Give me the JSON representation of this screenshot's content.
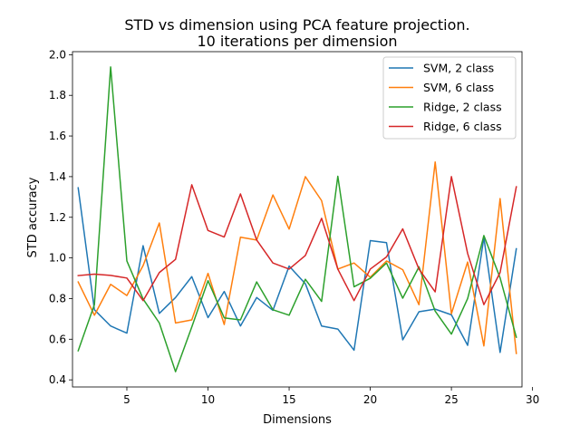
{
  "chart_data": {
    "type": "line",
    "title": [
      "STD vs dimension using PCA feature projection.",
      "10 iterations per dimension"
    ],
    "xlabel": "Dimensions",
    "ylabel": "STD accuracy",
    "xlim": [
      1.65,
      29.35
    ],
    "ylim": [
      0.365,
      2.015
    ],
    "xticks": [
      5,
      10,
      15,
      20,
      25,
      30
    ],
    "yticks": [
      0.4,
      0.6,
      0.8,
      1.0,
      1.2,
      1.4,
      1.6,
      1.8,
      2.0
    ],
    "xtick_labels": [
      "5",
      "10",
      "15",
      "20",
      "25",
      "30"
    ],
    "ytick_labels": [
      "0.4",
      "0.6",
      "0.8",
      "1.0",
      "1.2",
      "1.4",
      "1.6",
      "1.8",
      "2.0"
    ],
    "grid": false,
    "legend_position": "top-right",
    "x": [
      2,
      3,
      4,
      5,
      6,
      7,
      8,
      9,
      10,
      11,
      12,
      13,
      14,
      15,
      16,
      17,
      18,
      19,
      20,
      21,
      22,
      23,
      24,
      25,
      26,
      27,
      28,
      29
    ],
    "series": [
      {
        "name": "SVM, 2 class",
        "color": "#1f77b4",
        "values": [
          1.345,
          0.745,
          0.665,
          0.63,
          1.06,
          0.727,
          0.805,
          0.908,
          0.706,
          0.835,
          0.665,
          0.805,
          0.742,
          0.96,
          0.873,
          0.665,
          0.65,
          0.546,
          1.085,
          1.075,
          0.597,
          0.735,
          0.748,
          0.72,
          0.57,
          1.1,
          0.535,
          1.045
        ]
      },
      {
        "name": "SVM, 6 class",
        "color": "#ff7f0e",
        "values": [
          0.882,
          0.718,
          0.87,
          0.815,
          0.962,
          1.172,
          0.68,
          0.695,
          0.924,
          0.672,
          1.102,
          1.088,
          1.31,
          1.142,
          1.4,
          1.282,
          0.945,
          0.975,
          0.905,
          0.985,
          0.942,
          0.77,
          1.472,
          0.725,
          0.98,
          0.567,
          1.292,
          0.53
        ]
      },
      {
        "name": "Ridge, 2 class",
        "color": "#2ca02c",
        "values": [
          0.543,
          0.77,
          1.94,
          0.985,
          0.798,
          0.68,
          0.44,
          0.66,
          0.888,
          0.705,
          0.695,
          0.882,
          0.745,
          0.718,
          0.895,
          0.786,
          1.402,
          0.858,
          0.9,
          0.975,
          0.802,
          0.956,
          0.738,
          0.625,
          0.8,
          1.11,
          0.902,
          0.61
        ]
      },
      {
        "name": "Ridge, 6 class",
        "color": "#d62728",
        "values": [
          0.913,
          0.92,
          0.914,
          0.901,
          0.79,
          0.928,
          0.993,
          1.36,
          1.135,
          1.103,
          1.315,
          1.088,
          0.975,
          0.945,
          1.012,
          1.195,
          0.945,
          0.79,
          0.945,
          1.005,
          1.143,
          0.945,
          0.833,
          1.4,
          1.022,
          0.77,
          0.928,
          1.35
        ]
      }
    ]
  }
}
